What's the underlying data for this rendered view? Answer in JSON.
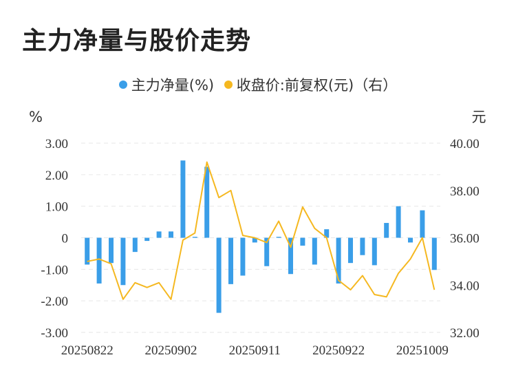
{
  "title": "主力净量与股价走势",
  "chart_data": {
    "type": "bar+line",
    "title": "主力净量与股价走势",
    "legend_position": "top-center",
    "left_unit": "%",
    "right_unit": "元",
    "y_left": {
      "min": -3,
      "max": 3,
      "ticks": [
        "3.00",
        "2.00",
        "1.00",
        "0",
        "-1.00",
        "-2.00",
        "-3.00"
      ]
    },
    "y_right": {
      "min": 32,
      "max": 40,
      "ticks": [
        "40.00",
        "38.00",
        "36.00",
        "34.00",
        "32.00"
      ]
    },
    "grid": true,
    "x_tick_labels": [
      {
        "index": 0,
        "label": "20250822"
      },
      {
        "index": 7,
        "label": "20250902"
      },
      {
        "index": 14,
        "label": "20250911"
      },
      {
        "index": 21,
        "label": "20250922"
      },
      {
        "index": 28,
        "label": "20251009"
      }
    ],
    "series": [
      {
        "name": "主力净量(%)",
        "type": "bar",
        "color": "#3a9ee8",
        "values": [
          -0.85,
          -1.45,
          -0.8,
          -1.5,
          -0.45,
          -0.1,
          0.2,
          0.2,
          2.45,
          0.03,
          2.25,
          -2.38,
          -1.47,
          -1.2,
          -0.15,
          -0.9,
          0.03,
          -1.15,
          -0.25,
          -0.85,
          0.27,
          -1.45,
          -0.8,
          -0.55,
          -0.87,
          0.47,
          1.0,
          -0.15,
          0.87,
          -1.02
        ]
      },
      {
        "name": "收盘价:前复权(元)（右）",
        "type": "line",
        "color": "#f5b820",
        "values": [
          35.0,
          35.1,
          34.9,
          33.4,
          34.1,
          33.9,
          34.1,
          33.4,
          35.9,
          36.2,
          39.2,
          37.7,
          38.0,
          36.1,
          36.0,
          35.8,
          36.7,
          35.6,
          37.3,
          36.4,
          36.0,
          34.2,
          33.8,
          34.4,
          33.6,
          33.5,
          34.5,
          35.1,
          36.0,
          33.8
        ]
      }
    ]
  }
}
